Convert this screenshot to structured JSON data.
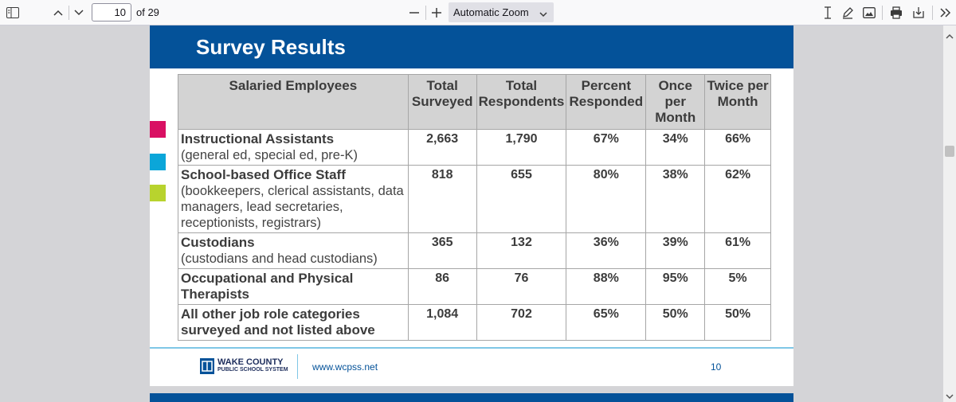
{
  "toolbar": {
    "page_number": "10",
    "page_count": "of 29",
    "zoom_label": "Automatic Zoom"
  },
  "slide": {
    "title": "Survey Results",
    "headers": [
      "Salaried Employees",
      "Total Surveyed",
      "Total Respondents",
      "Percent Responded",
      "Once per Month",
      "Twice per Month"
    ],
    "rows": [
      {
        "name": "Instructional Assistants",
        "desc": "(general ed, special ed, pre-K)",
        "total_surveyed": "2,663",
        "total_respondents": "1,790",
        "percent_responded": "67%",
        "once": "34%",
        "twice": "66%"
      },
      {
        "name": "School-based Office Staff",
        "desc": "(bookkeepers, clerical assistants, data managers, lead secretaries, receptionists, registrars)",
        "total_surveyed": "818",
        "total_respondents": "655",
        "percent_responded": "80%",
        "once": "38%",
        "twice": "62%"
      },
      {
        "name": "Custodians",
        "desc": "(custodians and head custodians)",
        "total_surveyed": "365",
        "total_respondents": "132",
        "percent_responded": "36%",
        "once": "39%",
        "twice": "61%"
      },
      {
        "name": "Occupational and Physical Therapists",
        "desc": "",
        "total_surveyed": "86",
        "total_respondents": "76",
        "percent_responded": "88%",
        "once": "95%",
        "twice": "5%"
      },
      {
        "name": "All other job role categories surveyed and not listed above",
        "desc": "",
        "total_surveyed": "1,084",
        "total_respondents": "702",
        "percent_responded": "65%",
        "once": "50%",
        "twice": "50%"
      }
    ],
    "footer": {
      "logo_line1": "WAKE COUNTY",
      "logo_line2": "PUBLIC SCHOOL SYSTEM",
      "url": "www.wcpss.net",
      "page": "10"
    }
  },
  "colors": {
    "brand_blue": "#045299",
    "accent_pink": "#d91063",
    "accent_cyan": "#0ba6d9",
    "accent_green": "#b8d32e"
  }
}
